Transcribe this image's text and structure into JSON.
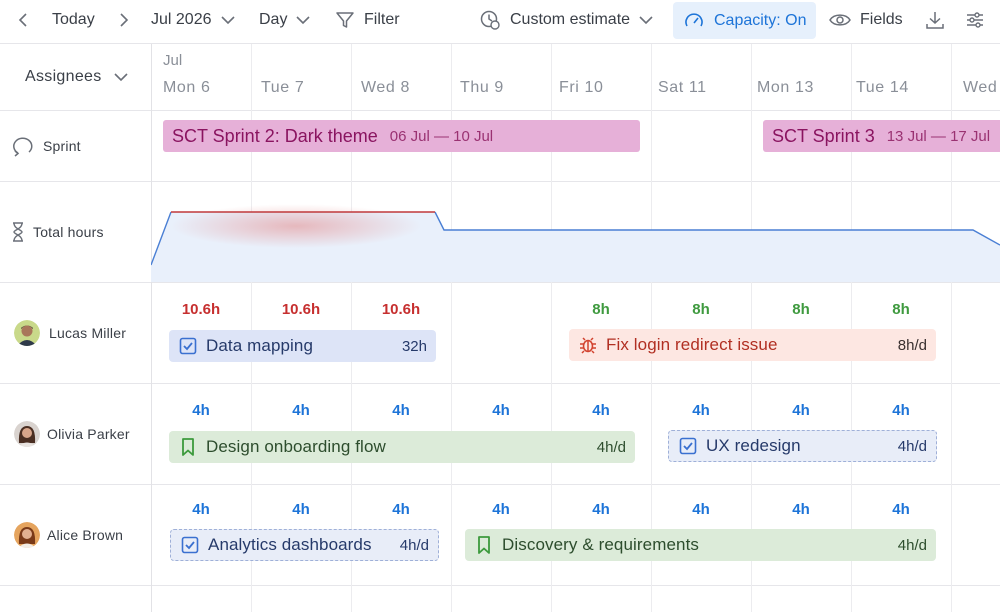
{
  "toolbar": {
    "today_label": "Today",
    "period_label": "Jul 2026",
    "scale_label": "Day",
    "filter_label": "Filter",
    "estimate_label": "Custom estimate",
    "capacity_label": "Capacity: On",
    "fields_label": "Fields"
  },
  "timeline": {
    "month": "Jul",
    "days": [
      "Mon 6",
      "Tue 7",
      "Wed 8",
      "Thu 9",
      "Fri 10",
      "Sat 11",
      "Mon 13",
      "Tue 14",
      "Wed"
    ]
  },
  "left": {
    "assignees_label": "Assignees",
    "sprint_label": "Sprint",
    "total_hours_label": "Total hours"
  },
  "sprints": [
    {
      "name": "SCT Sprint 2: Dark theme",
      "dates": "06 Jul — 10 Jul"
    },
    {
      "name": "SCT Sprint 3",
      "dates": "13 Jul — 17 Jul"
    }
  ],
  "total_hours_chart": {
    "type": "area",
    "overload_color": "#c0393b",
    "normal_color": "#4a7fd4",
    "fill_color": "#e9f0fb",
    "overloaded_days": [
      "Mon 6",
      "Tue 7",
      "Wed 8"
    ]
  },
  "assignees": [
    {
      "name": "Lucas Miller",
      "hours": [
        "10.6h",
        "10.6h",
        "10.6h",
        "",
        "8h",
        "8h",
        "8h",
        "8h"
      ],
      "hours_colors": [
        "#c62f2f",
        "#c62f2f",
        "#c62f2f",
        "",
        "#3f9a3f",
        "#3f9a3f",
        "#3f9a3f",
        "#3f9a3f"
      ],
      "tasks": [
        {
          "name": "Data mapping",
          "meta": "32h",
          "icon": "checkbox-icon"
        },
        {
          "name": "Fix login redirect issue",
          "meta": "8h/d",
          "icon": "bug-icon"
        }
      ]
    },
    {
      "name": "Olivia Parker",
      "hours": [
        "4h",
        "4h",
        "4h",
        "4h",
        "4h",
        "4h",
        "4h",
        "4h"
      ],
      "tasks": [
        {
          "name": "Design onboarding flow",
          "meta": "4h/d",
          "icon": "bookmark-icon"
        },
        {
          "name": "UX redesign",
          "meta": "4h/d",
          "icon": "checkbox-icon"
        }
      ]
    },
    {
      "name": "Alice Brown",
      "hours": [
        "4h",
        "4h",
        "4h",
        "4h",
        "4h",
        "4h",
        "4h",
        "4h"
      ],
      "tasks": [
        {
          "name": "Analytics dashboards",
          "meta": "4h/d",
          "icon": "checkbox-icon"
        },
        {
          "name": "Discovery & requirements",
          "meta": "4h/d",
          "icon": "bookmark-icon"
        }
      ]
    }
  ],
  "colors": {
    "accent": "#1d74d8",
    "hours_normal": "#1d74d8",
    "hours_over": "#c62f2f",
    "hours_ok": "#3f9a3f",
    "sprint_bg": "#e6b0d8"
  }
}
